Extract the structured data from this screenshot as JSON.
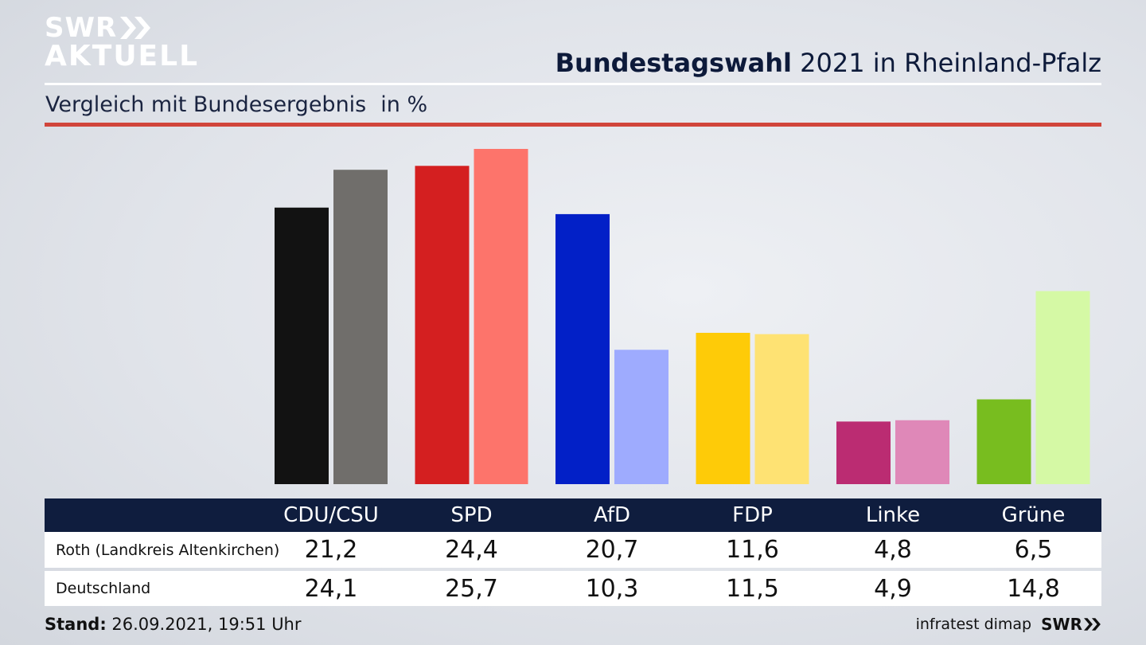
{
  "brand": {
    "line1": "SWR",
    "line2": "AKTUELL"
  },
  "header": {
    "title_bold": "Bundestagswahl",
    "title_rest": "2021 in Rheinland-Pfalz"
  },
  "subtitle": {
    "text": "Vergleich mit Bundesergebnis",
    "unit": "in %"
  },
  "chart_data": {
    "type": "bar",
    "categories": [
      "CDU/CSU",
      "SPD",
      "AfD",
      "FDP",
      "Linke",
      "Grüne"
    ],
    "series": [
      {
        "name": "Roth (Landkreis Altenkirchen)",
        "values": [
          21.2,
          24.4,
          20.7,
          11.6,
          4.8,
          6.5
        ],
        "colors": [
          "#121212",
          "#d41f20",
          "#0220c7",
          "#fecb08",
          "#bb2c72",
          "#78bd1f"
        ]
      },
      {
        "name": "Deutschland",
        "values": [
          24.1,
          25.7,
          10.3,
          11.5,
          4.9,
          14.8
        ],
        "colors": [
          "#706e6b",
          "#fd746b",
          "#9eabfe",
          "#fee273",
          "#df88b8",
          "#d5f9a5"
        ]
      }
    ],
    "ylim": [
      0,
      25.7
    ],
    "grid": false,
    "legend": "table-below"
  },
  "footer": {
    "stand_label": "Stand:",
    "stand_value": "26.09.2021, 19:51 Uhr",
    "source": "infratest dimap",
    "logo": "SWR"
  }
}
